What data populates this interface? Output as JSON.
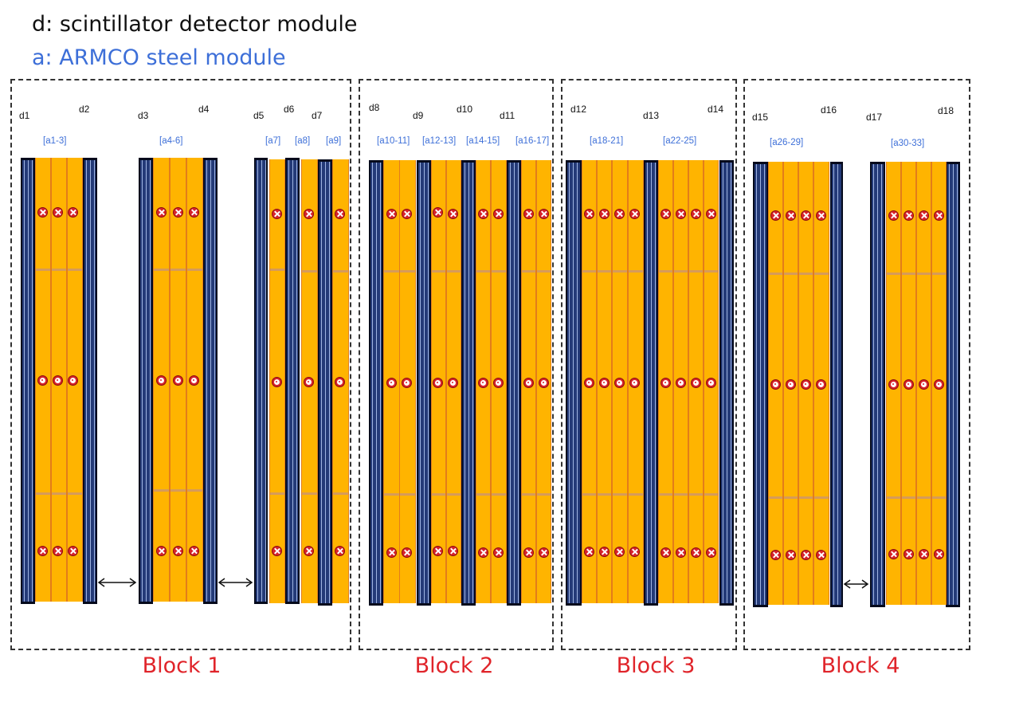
{
  "legend": {
    "detector": "d: scintillator detector module",
    "steel": "a: ARMCO steel module"
  },
  "colors": {
    "detector_legend": "#111111",
    "steel_legend": "#3d6fd8",
    "block_label": "#e0242a",
    "steel_fill": "#ffb400",
    "detector_fill": "#243a78",
    "marker": "#d8232a"
  },
  "blocks": [
    {
      "label": "Block 1"
    },
    {
      "label": "Block 2"
    },
    {
      "label": "Block 3"
    },
    {
      "label": "Block 4"
    }
  ],
  "detector_labels": [
    "d1",
    "d2",
    "d3",
    "d4",
    "d5",
    "d6",
    "d7",
    "d8",
    "d9",
    "d10",
    "d11",
    "d12",
    "d13",
    "d14",
    "d15",
    "d16",
    "d17",
    "d18"
  ],
  "steel_labels": [
    "[a1-3]",
    "[a4-6]",
    "[a7]",
    "[a8]",
    "[a9]",
    "[a10-11]",
    "[a12-13]",
    "[a14-15]",
    "[a16-17]",
    "[a18-21]",
    "[a22-25]",
    "[a26-29]",
    "[a30-33]"
  ],
  "marker_icons": [
    "cross-in-circle-icon",
    "dot-in-circle-icon"
  ]
}
